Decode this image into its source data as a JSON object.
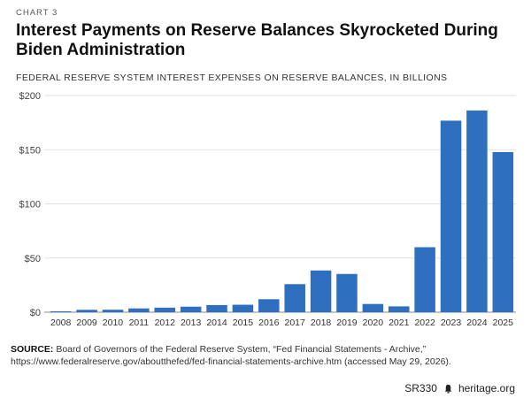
{
  "header": {
    "chart_label": "CHART 3",
    "title": "Interest Payments on Reserve Balances Skyrocketed During Biden Administration",
    "subtitle": "FEDERAL RESERVE SYSTEM INTEREST EXPENSES ON RESERVE BALANCES, IN BILLIONS"
  },
  "chart_data": {
    "type": "bar",
    "categories": [
      "2008",
      "2009",
      "2010",
      "2011",
      "2012",
      "2013",
      "2014",
      "2015",
      "2016",
      "2017",
      "2018",
      "2019",
      "2020",
      "2021",
      "2022",
      "2023",
      "2024",
      "2025"
    ],
    "values": [
      0.8,
      2.2,
      2.3,
      3.5,
      4.2,
      5.1,
      6.6,
      6.9,
      12.0,
      25.9,
      38.5,
      35.3,
      7.6,
      5.4,
      60.0,
      176.8,
      186.2,
      147.8
    ],
    "ylim": [
      0,
      200
    ],
    "yticks": [
      0,
      50,
      100,
      150,
      200
    ],
    "ytick_labels": [
      "$0",
      "$50",
      "$100",
      "$150",
      "$200"
    ],
    "bar_color": "#2e6fbf",
    "grid": true,
    "xlabel": "",
    "ylabel": ""
  },
  "source": {
    "label": "SOURCE:",
    "text": "Board of Governors of the Federal Reserve System, “Fed Financial Statements - Archive,” https://www.federalreserve.gov/aboutthefed/fed-financial-statements-archive.htm (accessed May 29, 2026)."
  },
  "footer": {
    "report_id": "SR330",
    "site": "heritage.org",
    "icon": "bell-icon"
  }
}
